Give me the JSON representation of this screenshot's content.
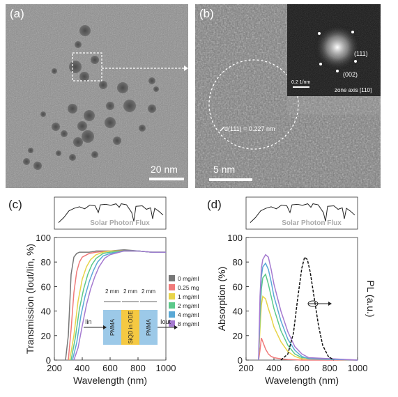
{
  "panel_a": {
    "label": "(a)",
    "scale": "20 nm"
  },
  "panel_b": {
    "label": "(b)",
    "scale": "5 nm",
    "d_spacing": "d(111) = 0.227 nm",
    "fft_scale": "0.2 1/nm",
    "fft_zone": "zone axis [110]",
    "fft_111": "(111)",
    "fft_002": "(002)"
  },
  "panel_c": {
    "label": "(c)"
  },
  "panel_d": {
    "label": "(d)"
  },
  "chart_data": [
    {
      "type": "line",
      "panel": "(c)",
      "inset_label": "Solar Photon Flux",
      "xlabel": "Wavelength (nm)",
      "ylabel": "Transmission (Iout/Iin, %)",
      "xlim": [
        200,
        1000
      ],
      "ylim": [
        0,
        100
      ],
      "xticks": [
        200,
        400,
        600,
        800,
        1000
      ],
      "yticks": [
        0,
        20,
        40,
        60,
        80,
        100
      ],
      "series": [
        {
          "name": "0 mg/mL",
          "color": "#777777",
          "x": [
            280,
            300,
            320,
            340,
            360,
            380,
            400,
            450,
            500,
            600,
            700,
            800,
            900,
            1000
          ],
          "y": [
            0,
            20,
            70,
            84,
            87,
            88,
            88,
            88,
            89,
            89,
            90,
            89,
            88,
            88
          ]
        },
        {
          "name": "0.25 mg/mL",
          "color": "#f07a7a",
          "x": [
            300,
            320,
            340,
            360,
            380,
            400,
            450,
            500,
            600,
            700,
            800,
            900,
            1000
          ],
          "y": [
            0,
            25,
            55,
            72,
            80,
            84,
            87,
            88,
            89,
            89,
            89,
            88,
            88
          ]
        },
        {
          "name": "1 mg/mL",
          "color": "#e8d44a",
          "x": [
            310,
            340,
            370,
            400,
            430,
            460,
            500,
            550,
            600,
            700,
            800,
            900,
            1000
          ],
          "y": [
            0,
            20,
            48,
            66,
            76,
            82,
            86,
            88,
            89,
            89,
            89,
            88,
            88
          ]
        },
        {
          "name": "2 mg/mL",
          "color": "#5cc98a",
          "x": [
            320,
            350,
            380,
            410,
            440,
            470,
            500,
            550,
            600,
            700,
            800,
            900,
            1000
          ],
          "y": [
            0,
            18,
            42,
            58,
            70,
            78,
            83,
            87,
            88,
            89,
            89,
            88,
            88
          ]
        },
        {
          "name": "4 mg/mL",
          "color": "#5aa9d6",
          "x": [
            330,
            360,
            390,
            420,
            450,
            480,
            510,
            550,
            600,
            700,
            800,
            900,
            1000
          ],
          "y": [
            0,
            14,
            36,
            52,
            64,
            73,
            80,
            85,
            87,
            89,
            89,
            88,
            88
          ]
        },
        {
          "name": "8 mg/mL",
          "color": "#a57ad0",
          "x": [
            340,
            370,
            400,
            430,
            460,
            490,
            520,
            560,
            600,
            700,
            800,
            900,
            1000
          ],
          "y": [
            0,
            10,
            28,
            45,
            58,
            68,
            76,
            83,
            86,
            89,
            89,
            88,
            88
          ]
        }
      ],
      "legend_position": "right",
      "schematic": {
        "dims": [
          "2 mm",
          "2 mm",
          "2 mm"
        ],
        "layers": [
          "PMMA",
          "SiQD in ODE",
          "PMMA"
        ],
        "input": "Iin",
        "output": "Iout"
      }
    },
    {
      "type": "line",
      "panel": "(d)",
      "inset_label": "Solar Photon Flux",
      "xlabel": "Wavelength (nm)",
      "ylabel": "Absorption (%)",
      "y2label": "PL (a.u.)",
      "xlim": [
        200,
        1000
      ],
      "ylim": [
        0,
        100
      ],
      "xticks": [
        200,
        400,
        600,
        800,
        1000
      ],
      "yticks": [
        0,
        20,
        40,
        60,
        80,
        100
      ],
      "series": [
        {
          "color": "#f07a7a",
          "x": [
            290,
            300,
            310,
            320,
            340,
            360,
            380,
            400,
            450,
            500,
            600,
            1000
          ],
          "y": [
            0,
            8,
            18,
            15,
            9,
            5,
            3,
            2,
            1,
            0.5,
            0,
            0
          ]
        },
        {
          "color": "#e8d44a",
          "x": [
            290,
            300,
            310,
            320,
            340,
            360,
            380,
            400,
            450,
            500,
            550,
            600,
            1000
          ],
          "y": [
            0,
            25,
            45,
            52,
            50,
            42,
            35,
            27,
            15,
            7,
            3,
            1,
            0
          ]
        },
        {
          "color": "#5cc98a",
          "x": [
            290,
            300,
            310,
            320,
            340,
            360,
            380,
            400,
            450,
            500,
            550,
            600,
            1000
          ],
          "y": [
            0,
            35,
            58,
            67,
            70,
            62,
            52,
            42,
            24,
            12,
            5,
            2,
            0
          ]
        },
        {
          "color": "#5aa9d6",
          "x": [
            290,
            300,
            310,
            320,
            340,
            360,
            380,
            400,
            450,
            500,
            550,
            600,
            650,
            1000
          ],
          "y": [
            0,
            45,
            68,
            76,
            79,
            74,
            64,
            52,
            32,
            17,
            8,
            3,
            1,
            0
          ]
        },
        {
          "color": "#a57ad0",
          "x": [
            290,
            300,
            310,
            320,
            340,
            360,
            380,
            400,
            450,
            500,
            550,
            600,
            650,
            1000
          ],
          "y": [
            0,
            52,
            75,
            82,
            86,
            84,
            74,
            62,
            40,
            23,
            11,
            5,
            2,
            0
          ]
        },
        {
          "color": "#111111",
          "dashed": true,
          "x": [
            450,
            500,
            540,
            570,
            600,
            620,
            640,
            660,
            690,
            720,
            750,
            790,
            830
          ],
          "y": [
            0,
            5,
            22,
            50,
            75,
            84,
            82,
            72,
            50,
            28,
            12,
            3,
            0
          ]
        }
      ]
    }
  ]
}
